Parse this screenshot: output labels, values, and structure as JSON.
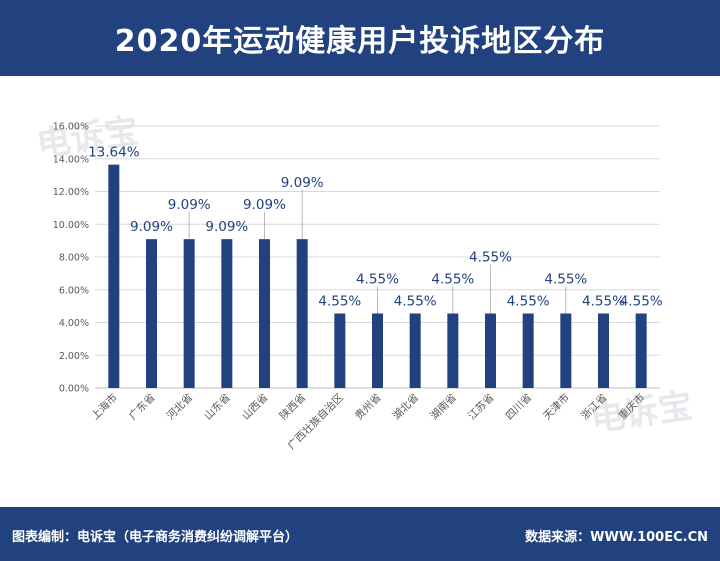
{
  "header": {
    "title": "2020年运动健康用户投诉地区分布"
  },
  "footer": {
    "left": "图表编制：电诉宝（电子商务消费纠纷调解平台）",
    "right": "数据来源：WWW.100EC.CN"
  },
  "watermark": {
    "text": "电诉宝"
  },
  "chart_data": {
    "type": "bar",
    "categories": [
      "上海市",
      "广东省",
      "河北省",
      "山东省",
      "山西省",
      "陕西省",
      "广西壮族自治区",
      "贵州省",
      "湖北省",
      "湖南省",
      "江苏省",
      "四川省",
      "天津市",
      "浙江省",
      "重庆市"
    ],
    "values": [
      13.64,
      9.09,
      9.09,
      9.09,
      9.09,
      9.09,
      4.55,
      4.55,
      4.55,
      4.55,
      4.55,
      4.55,
      4.55,
      4.55,
      4.55
    ],
    "data_labels": [
      "13.64%",
      "9.09%",
      "9.09%",
      "9.09%",
      "9.09%",
      "9.09%",
      "4.55%",
      "4.55%",
      "4.55%",
      "4.55%",
      "4.55%",
      "4.55%",
      "4.55%",
      "4.55%",
      "4.55%"
    ],
    "yticks": [
      "0.00%",
      "2.00%",
      "4.00%",
      "6.00%",
      "8.00%",
      "10.00%",
      "12.00%",
      "14.00%",
      "16.00%"
    ],
    "ylim": [
      0,
      16
    ],
    "grid": true,
    "color": "#21417f",
    "label_color": "#21417f"
  }
}
